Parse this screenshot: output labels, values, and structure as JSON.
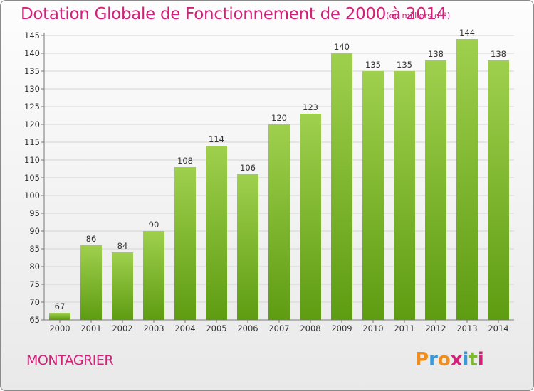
{
  "title": "Dotation Globale de Fonctionnement de 2000 à 2014",
  "subtitle": "(en milliers d'€)",
  "commune": "MONTAGRIER",
  "logo": {
    "letters": [
      "P",
      "r",
      "o",
      "x",
      "i",
      "t",
      "i"
    ],
    "colors": [
      "#f28c1c",
      "#3a9ad9",
      "#f28c1c",
      "#d1227a",
      "#3a9ad9",
      "#7dbb2e",
      "#d1227a"
    ]
  },
  "colors": {
    "bar_light": "#9fd04d",
    "bar_dark": "#5e9c12",
    "title": "#d1227a"
  },
  "chart_data": {
    "type": "bar",
    "categories": [
      "2000",
      "2001",
      "2002",
      "2003",
      "2004",
      "2005",
      "2006",
      "2007",
      "2008",
      "2009",
      "2010",
      "2011",
      "2012",
      "2013",
      "2014"
    ],
    "values": [
      67,
      86,
      84,
      90,
      108,
      114,
      106,
      120,
      123,
      140,
      135,
      135,
      138,
      144,
      138
    ],
    "title": "Dotation Globale de Fonctionnement de 2000 à 2014",
    "subtitle": "(en milliers d'€)",
    "ylim": [
      65,
      145
    ],
    "yticks": [
      65,
      70,
      75,
      80,
      85,
      90,
      95,
      100,
      105,
      110,
      115,
      120,
      125,
      130,
      135,
      140,
      145
    ],
    "grid": true,
    "data_labels": true
  }
}
